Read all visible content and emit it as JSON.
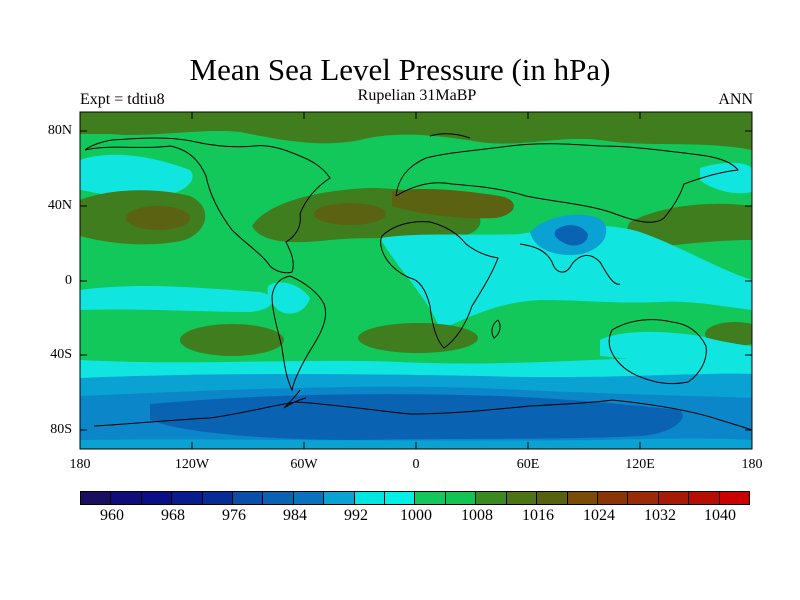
{
  "title": "Mean Sea Level Pressure (in hPa)",
  "subtitle": "Rupelian  31MaBP",
  "left_label": "Expt = tdtiu8",
  "right_label": "ANN",
  "lat_labels": [
    "80N",
    "40N",
    "0",
    "40S",
    "80S"
  ],
  "lon_labels": [
    "180",
    "120W",
    "60W",
    "0",
    "60E",
    "120E",
    "180"
  ],
  "colorbar": {
    "labels": [
      "960",
      "968",
      "976",
      "984",
      "992",
      "1000",
      "1008",
      "1016",
      "1024",
      "1032",
      "1040"
    ],
    "colors": [
      "#1a0f5e",
      "#0f0d7a",
      "#0a0f85",
      "#081c8c",
      "#062c96",
      "#0a4ea8",
      "#0a62b2",
      "#0872bd",
      "#09a2d2",
      "#00e6e0",
      "#00f0e8",
      "#12c85a",
      "#12c450",
      "#3a8a20",
      "#4c7314",
      "#566210",
      "#7a4c08",
      "#8a3408",
      "#9a2a08",
      "#a81a08",
      "#b80c04",
      "#cc0000"
    ]
  },
  "palette": {
    "deep_blue": "#0a62b2",
    "mid_blue": "#0b86c8",
    "light_blue": "#09a2d2",
    "cyan": "#10e6df",
    "green": "#12c85a",
    "dark_green": "#3f7d1e",
    "olive": "#5b6212"
  }
}
